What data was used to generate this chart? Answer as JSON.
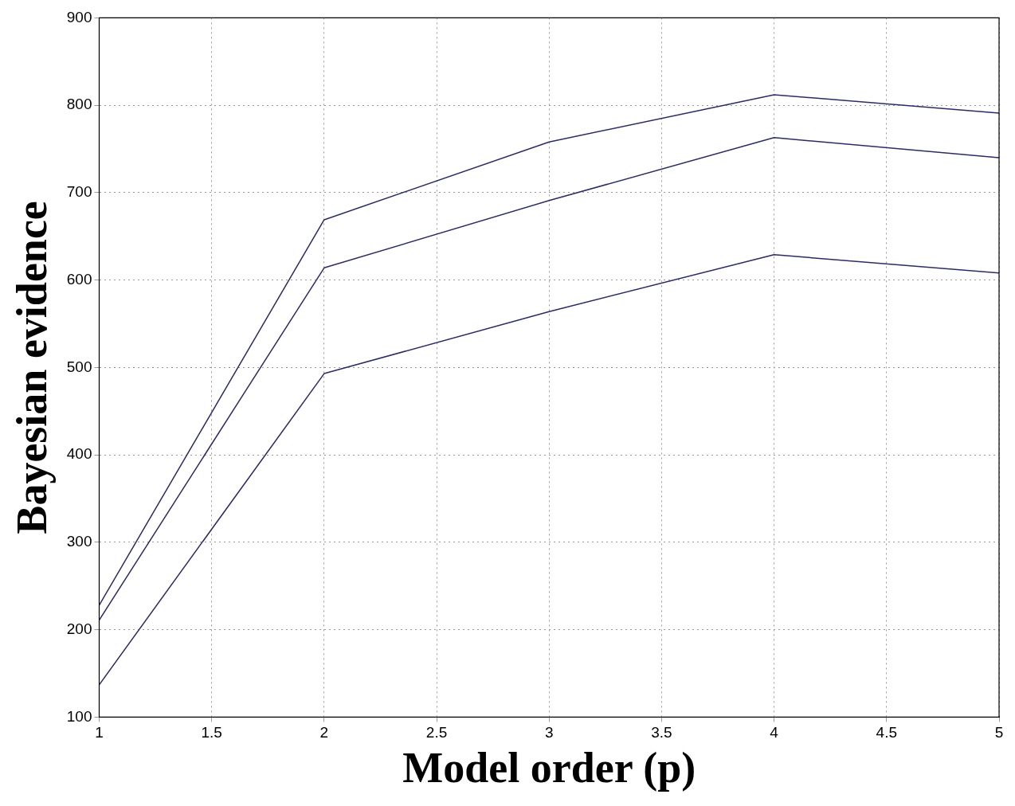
{
  "chart_data": {
    "type": "line",
    "xlabel": "Model order (p)",
    "ylabel": "Bayesian evidence",
    "x": [
      1,
      2,
      3,
      4,
      5
    ],
    "series": [
      {
        "color": "#2b2b66",
        "values": [
          228,
          669,
          758,
          812,
          791
        ]
      },
      {
        "color": "#2b2b66",
        "values": [
          211,
          614,
          691,
          763,
          740
        ]
      },
      {
        "color": "#2b2b66",
        "values": [
          137,
          493,
          564,
          629,
          608
        ]
      }
    ],
    "xlim": [
      1,
      5
    ],
    "xticks": [
      1,
      1.5,
      2,
      2.5,
      3,
      3.5,
      4,
      4.5,
      5
    ],
    "ylim": [
      100,
      900
    ],
    "yticks": [
      100,
      200,
      300,
      400,
      500,
      600,
      700,
      800,
      900
    ],
    "grid": true,
    "legend": false,
    "marker": "none",
    "line_style": "solid"
  }
}
